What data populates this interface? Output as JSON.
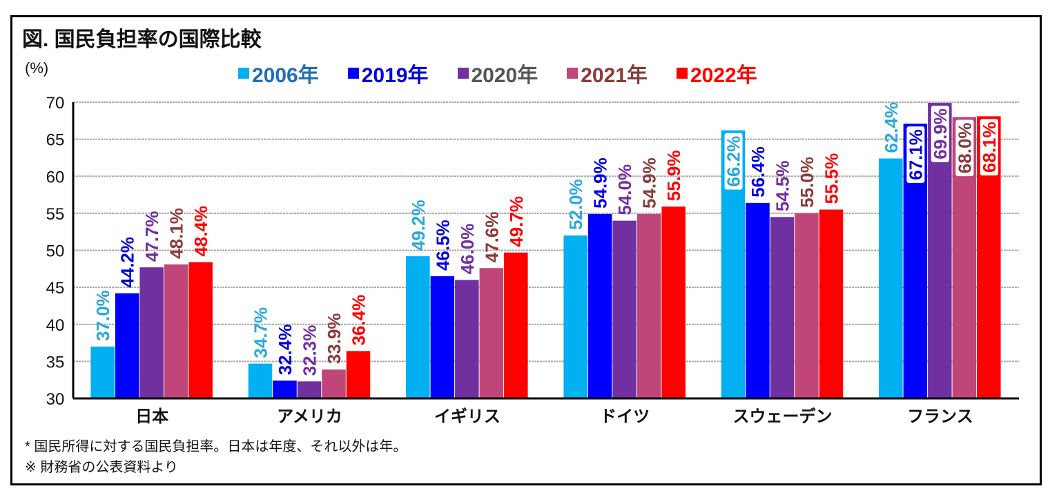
{
  "title": "図.  国民負担率の国際比較",
  "unit": "(%)",
  "notes": [
    "*  国民所得に対する国民負担率。日本は年度、それ以外は年。",
    "※ 財務省の公表資料より"
  ],
  "chart_data": {
    "type": "bar",
    "title": "図.  国民負担率の国際比較",
    "ylabel": "(%)",
    "ylim": [
      30,
      70
    ],
    "yticks": [
      30,
      35,
      40,
      45,
      50,
      55,
      60,
      65,
      70
    ],
    "grid": true,
    "legend": "top",
    "categories": [
      "日本",
      "アメリカ",
      "イギリス",
      "ドイツ",
      "スウェーデン",
      "フランス"
    ],
    "series": [
      {
        "name": "2006年",
        "color": "#00b0f0",
        "label_color": "#2aa8dc",
        "legend_text_color": "#1f6fb5",
        "values": [
          37.0,
          34.7,
          49.2,
          52.0,
          66.2,
          62.4
        ],
        "labels": [
          "37.0%",
          "34.7%",
          "49.2%",
          "52.0%",
          "66.2%",
          "62.4%"
        ]
      },
      {
        "name": "2019年",
        "color": "#0000ff",
        "label_color": "#0000e0",
        "legend_text_color": "#0000e0",
        "values": [
          44.2,
          32.4,
          46.5,
          54.9,
          56.4,
          67.1
        ],
        "labels": [
          "44.2%",
          "32.4%",
          "46.5%",
          "54.9%",
          "56.4%",
          "67.1%"
        ]
      },
      {
        "name": "2020年",
        "color": "#7030a0",
        "label_color": "#7030a0",
        "legend_text_color": "#555555",
        "values": [
          47.7,
          32.3,
          46.0,
          54.0,
          54.5,
          69.9
        ],
        "labels": [
          "47.7%",
          "32.3%",
          "46.0%",
          "54.0%",
          "54.5%",
          "69.9%"
        ]
      },
      {
        "name": "2021年",
        "color": "#c0467a",
        "label_color": "#8b3a3a",
        "legend_text_color": "#8b3a3a",
        "values": [
          48.1,
          33.9,
          47.6,
          54.9,
          55.0,
          68.0
        ],
        "labels": [
          "48.1%",
          "33.9%",
          "47.6%",
          "54.9%",
          "55.0%",
          "68.0%"
        ]
      },
      {
        "name": "2022年",
        "color": "#ff0000",
        "label_color": "#ff0000",
        "legend_text_color": "#ff0000",
        "values": [
          48.4,
          36.4,
          49.7,
          55.9,
          55.5,
          68.1
        ],
        "labels": [
          "48.4%",
          "36.4%",
          "49.7%",
          "55.9%",
          "55.5%",
          "68.1%"
        ]
      }
    ]
  }
}
